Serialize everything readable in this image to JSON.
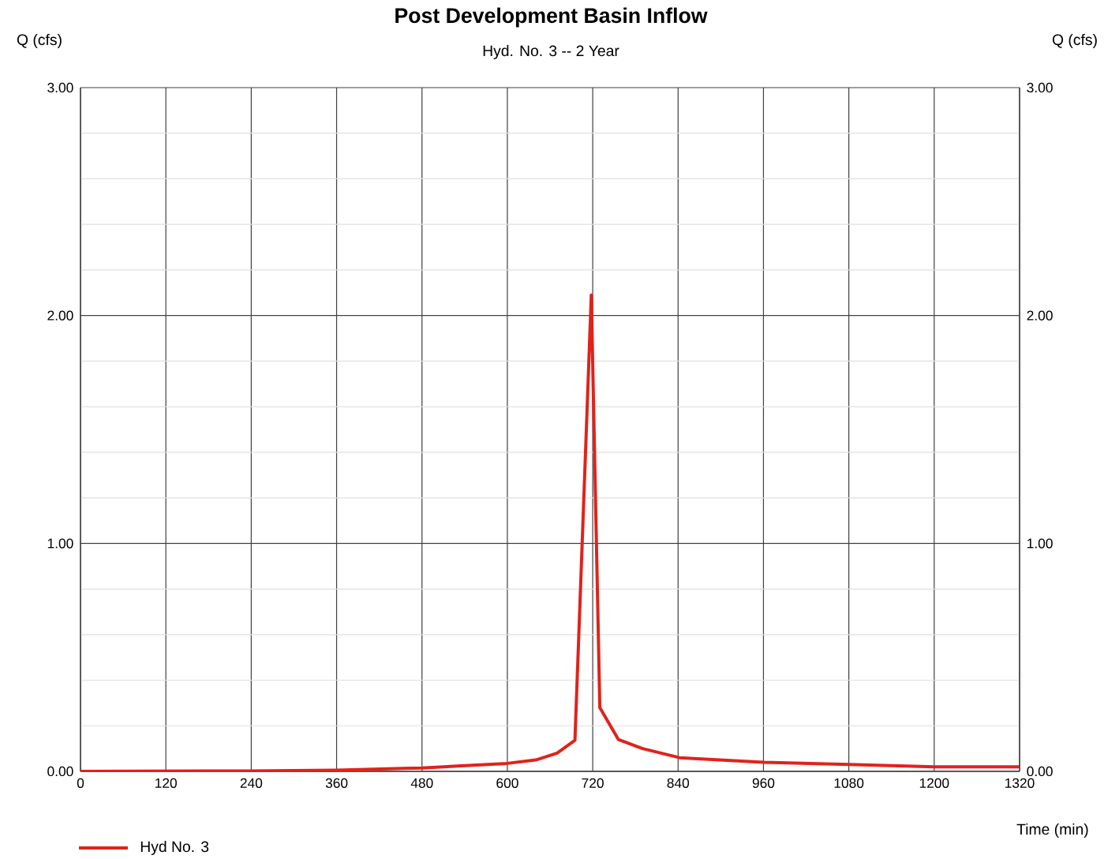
{
  "chart_data": {
    "type": "line",
    "title": "Post Development Basin Inflow",
    "subtitle": "Hyd. No. 3 -- 2 Year",
    "xlabel": "Time (min)",
    "ylabel": "Q (cfs)",
    "y2label": "Q (cfs)",
    "xlim": [
      0,
      1320
    ],
    "xticks": [
      0,
      120,
      240,
      360,
      480,
      600,
      720,
      840,
      960,
      1080,
      1200,
      1320
    ],
    "ylim": [
      0,
      3
    ],
    "yticks": [
      {
        "value": 0,
        "label": "0.00"
      },
      {
        "value": 1,
        "label": "1.00"
      },
      {
        "value": 2,
        "label": "2.00"
      },
      {
        "value": 3,
        "label": "3.00"
      }
    ],
    "y2lim": [
      0,
      3
    ],
    "y2ticks": [
      {
        "value": 0,
        "label": "0.00"
      },
      {
        "value": 1,
        "label": "1.00"
      },
      {
        "value": 2,
        "label": "2.00"
      },
      {
        "value": 3,
        "label": "3.00"
      }
    ],
    "grid": true,
    "legend": "bottom left",
    "marker": "none",
    "line_style": "solid",
    "x": [
      0,
      240,
      360,
      480,
      540,
      600,
      640,
      670,
      695,
      718,
      730,
      756,
      790,
      842,
      960,
      1080,
      1200,
      1320
    ],
    "series": [
      {
        "name": "Hyd No. 3",
        "color": "#e0231b",
        "values": [
          0.0,
          0.002,
          0.005,
          0.015,
          0.025,
          0.035,
          0.05,
          0.08,
          0.136,
          2.09,
          0.28,
          0.14,
          0.1,
          0.06,
          0.04,
          0.03,
          0.02,
          0.02
        ]
      }
    ]
  }
}
